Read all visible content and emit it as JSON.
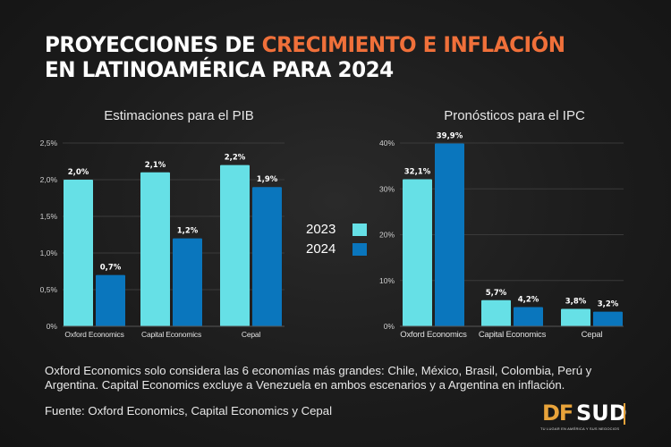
{
  "header": {
    "title_part1": "PROYECCIONES DE ",
    "title_highlight": "CRECIMIENTO E INFLACIÓN",
    "title_line2": "EN LATINOAMÉRICA PARA 2024"
  },
  "colors": {
    "series_2023": "#66e0e6",
    "series_2024": "#0a76bd",
    "highlight": "#f0703a",
    "logo_accent": "#e8a33a"
  },
  "legend": {
    "items": [
      {
        "label": "2023",
        "color": "#66e0e6"
      },
      {
        "label": "2024",
        "color": "#0a76bd"
      }
    ]
  },
  "chart_data": [
    {
      "type": "bar",
      "title": "Estimaciones para el PIB",
      "categories": [
        "Oxford Economics",
        "Capital Economics",
        "Cepal"
      ],
      "series": [
        {
          "name": "2023",
          "values": [
            2.0,
            2.1,
            2.2
          ],
          "labels": [
            "2,0%",
            "2,1%",
            "2,2%"
          ]
        },
        {
          "name": "2024",
          "values": [
            0.7,
            1.2,
            1.9
          ],
          "labels": [
            "0,7%",
            "1,2%",
            "1,9%"
          ]
        }
      ],
      "ylim": [
        0,
        2.5
      ],
      "yticks": [
        0,
        0.5,
        1.0,
        1.5,
        2.0,
        2.5
      ],
      "ytick_labels": [
        "0%",
        "0,5%",
        "1,0%",
        "1,5%",
        "2,0%",
        "2,5%"
      ],
      "grid": true,
      "xlabel": "",
      "ylabel": ""
    },
    {
      "type": "bar",
      "title": "Pronósticos para el IPC",
      "categories": [
        "Oxford Economics",
        "Capital Economics",
        "Cepal"
      ],
      "series": [
        {
          "name": "2023",
          "values": [
            32.1,
            5.7,
            3.8
          ],
          "labels": [
            "32,1%",
            "5,7%",
            "3,8%"
          ]
        },
        {
          "name": "2024",
          "values": [
            39.9,
            4.2,
            3.2
          ],
          "labels": [
            "39,9%",
            "4,2%",
            "3,2%"
          ]
        }
      ],
      "ylim": [
        0,
        40
      ],
      "yticks": [
        0,
        10,
        20,
        30,
        40
      ],
      "ytick_labels": [
        "0%",
        "10%",
        "20%",
        "30%",
        "40%"
      ],
      "grid": true,
      "xlabel": "",
      "ylabel": ""
    }
  ],
  "footer": {
    "note": "Oxford Economics solo considera las 6 economías más grandes: Chile, México, Brasil, Colombia, Perú y Argentina. Capital Economics excluye a Venezuela en ambos escenarios y a Argentina en inflación.",
    "source": "Fuente: Oxford Economics, Capital Economics y Cepal"
  },
  "logo": {
    "part1": "DF",
    "part2": "SUD",
    "tagline": "TU LUGAR EN AMÉRICA Y SUS NEGOCIOS"
  }
}
